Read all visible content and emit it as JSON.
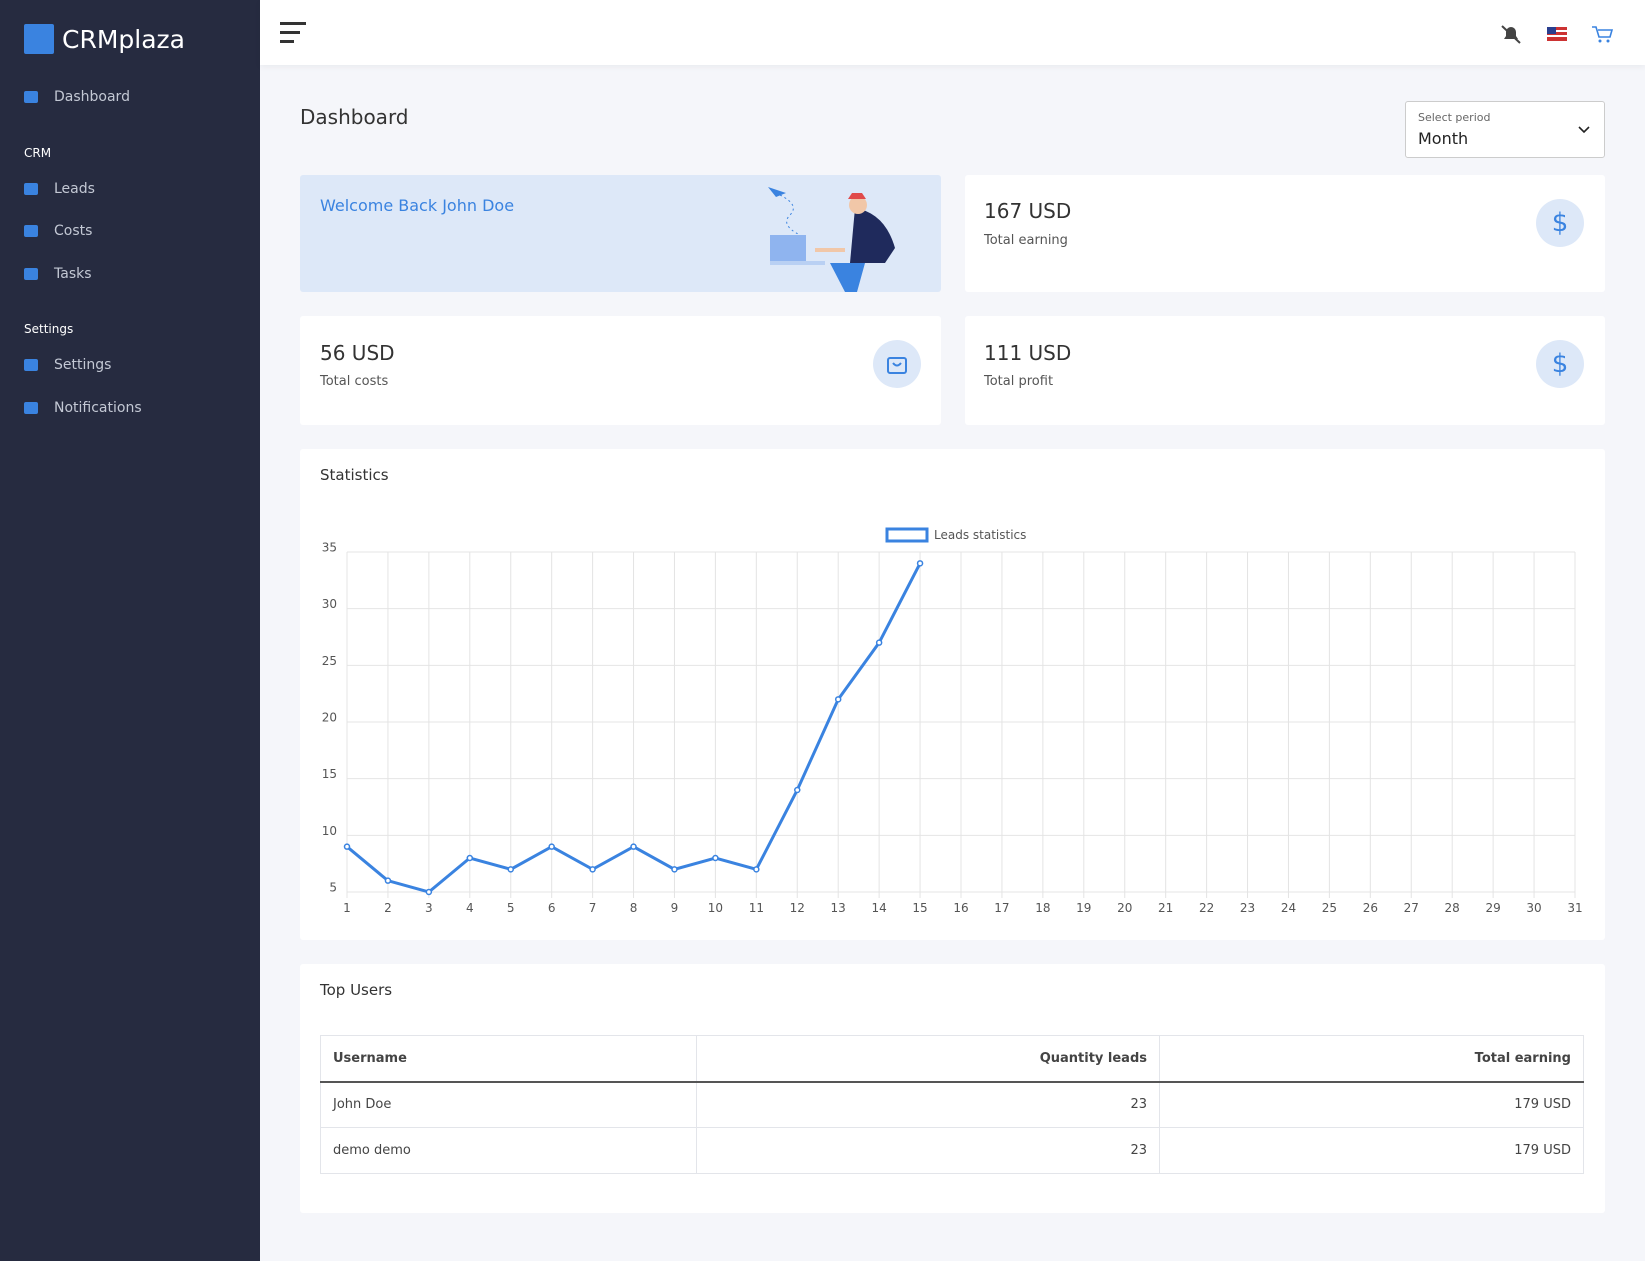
{
  "sidebar": {
    "brand": "CRMplaza",
    "items": [
      {
        "label": "Dashboard"
      }
    ],
    "sections": [
      {
        "title": "CRM",
        "items": [
          {
            "label": "Leads"
          },
          {
            "label": "Costs"
          },
          {
            "label": "Tasks"
          }
        ]
      },
      {
        "title": "Settings",
        "items": [
          {
            "label": "Settings"
          },
          {
            "label": "Notifications"
          }
        ]
      }
    ]
  },
  "page": {
    "title": "Dashboard",
    "select": {
      "label": "Select period",
      "value": "Month"
    }
  },
  "welcome": {
    "text": "Welcome Back John Doe"
  },
  "cards": [
    {
      "value": "167 USD",
      "label": "Total earning"
    },
    {
      "value": "56 USD",
      "label": "Total costs"
    },
    {
      "value": "111 USD",
      "label": "Total profit"
    }
  ],
  "statistics": {
    "title": "Statistics"
  },
  "chart_data": {
    "type": "line",
    "x": [
      1,
      2,
      3,
      4,
      5,
      6,
      7,
      8,
      9,
      10,
      11,
      12,
      13,
      14,
      15,
      16,
      17,
      18,
      19,
      20,
      21,
      22,
      23,
      24,
      25,
      26,
      27,
      28,
      29,
      30,
      31
    ],
    "series": [
      {
        "name": "Leads statistics",
        "color": "#3a83e0",
        "values": [
          9,
          6,
          5,
          8,
          7,
          9,
          7,
          9,
          7,
          8,
          7,
          14,
          22,
          27,
          34,
          null,
          null,
          null,
          null,
          null,
          null,
          null,
          null,
          null,
          null,
          null,
          null,
          null,
          null,
          null,
          null
        ]
      }
    ],
    "xlim": [
      1,
      31
    ],
    "ylim": [
      5,
      35
    ],
    "yticks": [
      5,
      10,
      15,
      20,
      25,
      30,
      35
    ],
    "grid": true,
    "legend": "top"
  },
  "top_users": {
    "title": "Top Users",
    "table": {
      "header": [
        "Username",
        "Quantity leads",
        "Total earning"
      ],
      "rows": [
        [
          "John Doe",
          "23",
          "179 USD"
        ],
        [
          "demo demo",
          "23",
          "179 USD"
        ]
      ]
    }
  }
}
